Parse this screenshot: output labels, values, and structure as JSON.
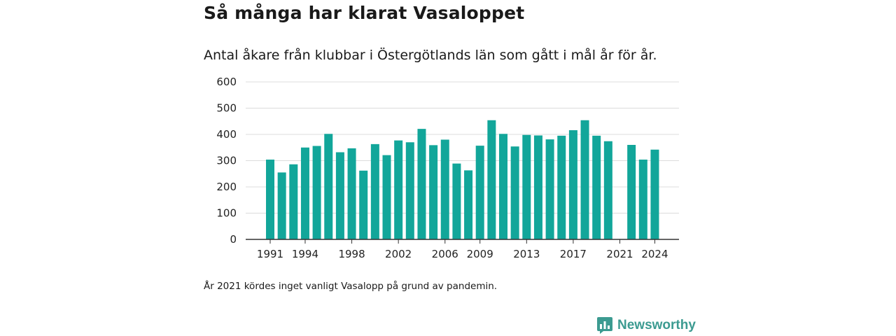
{
  "colors": {
    "bar": "#12a69a",
    "grid": "#dcdcdc",
    "axis": "#333333",
    "brand": "#3c9b91"
  },
  "brand": {
    "name": "Newsworthy",
    "icon": "chart-bubble-icon"
  },
  "note": "År 2021 kördes inget vanligt Vasalopp på grund av pandemin.",
  "chart_data": {
    "type": "bar",
    "title": "Så många har klarat Vasaloppet",
    "subtitle": "Antal åkare från klubbar i Östergötlands län som gått i mål år för år.",
    "xlabel": "",
    "ylabel": "",
    "ylim": [
      0,
      600
    ],
    "yticks": [
      0,
      100,
      200,
      300,
      400,
      500,
      600
    ],
    "xticks": [
      1991,
      1994,
      1998,
      2002,
      2006,
      2009,
      2013,
      2017,
      2021,
      2024
    ],
    "grid": true,
    "legend": "none",
    "categories": [
      1991,
      1992,
      1993,
      1994,
      1995,
      1996,
      1997,
      1998,
      1999,
      2000,
      2001,
      2002,
      2003,
      2004,
      2005,
      2006,
      2007,
      2008,
      2009,
      2010,
      2011,
      2012,
      2013,
      2014,
      2015,
      2016,
      2017,
      2018,
      2019,
      2020,
      2021,
      2022,
      2023,
      2024
    ],
    "values": [
      304,
      255,
      286,
      350,
      356,
      402,
      332,
      347,
      262,
      363,
      321,
      377,
      370,
      421,
      359,
      380,
      289,
      263,
      357,
      454,
      402,
      354,
      398,
      396,
      381,
      395,
      416,
      454,
      395,
      374,
      null,
      360,
      304,
      342
    ]
  }
}
